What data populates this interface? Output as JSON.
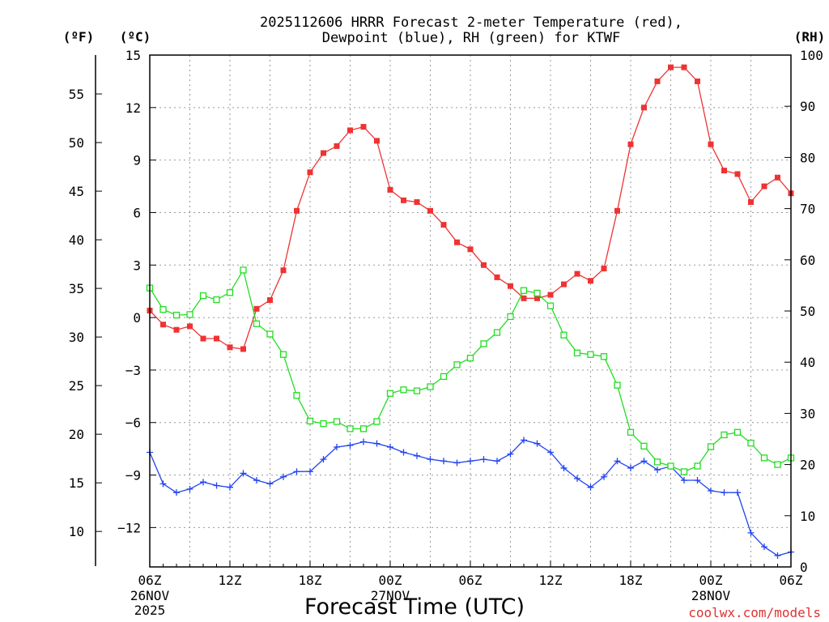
{
  "chart_data": {
    "type": "line",
    "title_line1": "2025112606 HRRR Forecast 2-meter Temperature (red),",
    "title_line2": "Dewpoint (blue), RH (green) for KTWF",
    "xlabel": "Forecast Time (UTC)",
    "credit": "coolwx.com/models",
    "units": {
      "fahrenheit": "(ºF)",
      "celsius": "(ºC)",
      "rh": "(RH)"
    },
    "x_tick_hours": [
      0,
      6,
      12,
      18,
      24,
      30,
      36,
      42,
      48
    ],
    "x_tick_labels": [
      "06Z",
      "12Z",
      "18Z",
      "00Z",
      "06Z",
      "12Z",
      "18Z",
      "00Z",
      "06Z"
    ],
    "x_date_labels": [
      {
        "hour": 0,
        "lines": [
          "26NOV",
          "2025"
        ]
      },
      {
        "hour": 18,
        "lines": [
          "27NOV"
        ]
      },
      {
        "hour": 42,
        "lines": [
          "28NOV"
        ]
      }
    ],
    "x_range": [
      0,
      48
    ],
    "celsius_range": [
      -14.25,
      15.0
    ],
    "celsius_ticks": [
      "15",
      "12",
      "9",
      "6",
      "3",
      "0",
      "−3",
      "−6",
      "−9",
      "−12"
    ],
    "celsius_tick_values": [
      15,
      12,
      9,
      6,
      3,
      0,
      -3,
      -6,
      -9,
      -12
    ],
    "fahrenheit_ticks": [
      "55",
      "50",
      "45",
      "40",
      "35",
      "30",
      "25",
      "20",
      "15",
      "10"
    ],
    "fahrenheit_tick_values": [
      55,
      50,
      45,
      40,
      35,
      30,
      25,
      20,
      15,
      10
    ],
    "rh_range": [
      0,
      100
    ],
    "rh_ticks": [
      "100",
      "90",
      "80",
      "70",
      "60",
      "50",
      "40",
      "30",
      "20",
      "10",
      "0"
    ],
    "rh_tick_values": [
      100,
      90,
      80,
      70,
      60,
      50,
      40,
      30,
      20,
      10,
      0
    ],
    "grid": true,
    "series": [
      {
        "name": "2-meter Temperature",
        "color": "#ee3333",
        "marker": "filled-square",
        "axis": "celsius",
        "values": [
          0.4,
          -0.4,
          -0.7,
          -0.5,
          -1.2,
          -1.2,
          -1.7,
          -1.8,
          0.5,
          1.0,
          2.7,
          6.1,
          8.3,
          9.4,
          9.8,
          10.7,
          10.9,
          10.1,
          7.3,
          6.7,
          6.6,
          6.1,
          5.3,
          4.3,
          3.9,
          3.0,
          2.3,
          1.8,
          1.1,
          1.1,
          1.3,
          1.9,
          2.5,
          2.1,
          2.8,
          6.1,
          9.9,
          12.0,
          13.5,
          14.3,
          14.3,
          13.5,
          9.9,
          8.4,
          8.2,
          6.6,
          7.5,
          8.0,
          7.1
        ]
      },
      {
        "name": "Dewpoint",
        "color": "#2244ee",
        "marker": "plus",
        "axis": "celsius",
        "values": [
          -7.7,
          -9.5,
          -10.0,
          -9.8,
          -9.4,
          -9.6,
          -9.7,
          -8.9,
          -9.3,
          -9.5,
          -9.1,
          -8.8,
          -8.8,
          -8.1,
          -7.4,
          -7.3,
          -7.1,
          -7.2,
          -7.4,
          -7.7,
          -7.9,
          -8.1,
          -8.2,
          -8.3,
          -8.2,
          -8.1,
          -8.2,
          -7.8,
          -7.0,
          -7.2,
          -7.7,
          -8.6,
          -9.2,
          -9.7,
          -9.1,
          -8.2,
          -8.6,
          -8.2,
          -8.7,
          -8.5,
          -9.3,
          -9.3,
          -9.9,
          -10.0,
          -10.0,
          -12.3,
          -13.1,
          -13.6,
          -13.4
        ]
      },
      {
        "name": "RH",
        "color": "#22dd22",
        "marker": "open-square",
        "axis": "rh",
        "values": [
          54.5,
          50.3,
          49.2,
          49.3,
          53.0,
          52.2,
          53.6,
          58.0,
          47.5,
          45.5,
          41.5,
          33.5,
          28.5,
          28.0,
          28.4,
          27.0,
          27.0,
          28.4,
          33.9,
          34.6,
          34.4,
          35.2,
          37.2,
          39.5,
          40.8,
          43.6,
          45.8,
          48.9,
          54.0,
          53.5,
          51.0,
          45.3,
          41.8,
          41.5,
          41.1,
          35.5,
          26.3,
          23.6,
          20.5,
          19.7,
          18.6,
          19.7,
          23.5,
          25.8,
          26.3,
          24.2,
          21.3,
          20.0,
          21.3
        ]
      }
    ]
  }
}
